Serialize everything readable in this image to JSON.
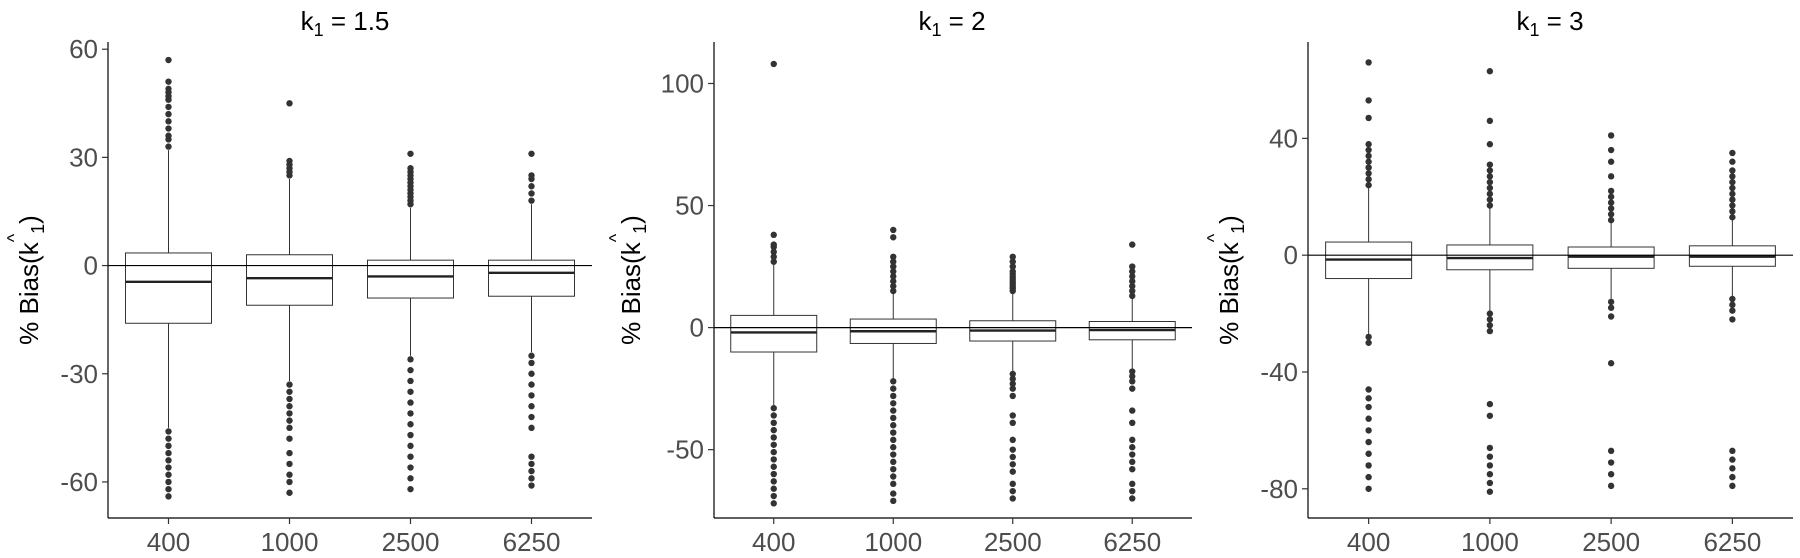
{
  "chart_data": [
    {
      "type": "boxplot",
      "title": {
        "var": "k",
        "sub": "1",
        "op": " = ",
        "value": "1.5"
      },
      "ylabel": {
        "prefix": "% Bias(",
        "var": "k",
        "sub": "1",
        "hat": "^",
        "suffix": ")"
      },
      "categories": [
        "400",
        "1000",
        "2500",
        "6250"
      ],
      "ylim": [
        -70,
        62
      ],
      "yticks": [
        60,
        30,
        0,
        -30,
        -60
      ],
      "ytick_labels": [
        "60",
        "30",
        "0",
        "-30",
        "-60"
      ],
      "hline": 0,
      "boxes": [
        {
          "q1": -16,
          "median": -4.5,
          "q3": 3.5,
          "whisker_low": -45,
          "whisker_high": 32,
          "outliers_high": [
            33,
            35,
            36,
            38,
            40,
            42,
            44,
            46,
            47,
            48,
            49,
            51,
            57
          ],
          "outliers_low": [
            -46,
            -48,
            -50,
            -52,
            -54,
            -56,
            -58,
            -60,
            -62,
            -64
          ]
        },
        {
          "q1": -11,
          "median": -3.5,
          "q3": 3,
          "whisker_low": -32,
          "whisker_high": 24,
          "outliers_high": [
            25,
            26,
            27,
            28,
            29,
            45
          ],
          "outliers_low": [
            -33,
            -35,
            -37,
            -39,
            -41,
            -43,
            -45,
            -48,
            -52,
            -55,
            -58,
            -60,
            -63
          ]
        },
        {
          "q1": -9,
          "median": -3,
          "q3": 1.5,
          "whisker_low": -25,
          "whisker_high": 16,
          "outliers_high": [
            17,
            18,
            19,
            20,
            21,
            22,
            23,
            24,
            25,
            26,
            27,
            31
          ],
          "outliers_low": [
            -26,
            -29,
            -32,
            -35,
            -38,
            -41,
            -44,
            -47,
            -50,
            -53,
            -56,
            -59,
            -62
          ]
        },
        {
          "q1": -8.5,
          "median": -2,
          "q3": 1.5,
          "whisker_low": -24,
          "whisker_high": 17,
          "outliers_high": [
            18,
            20,
            22,
            24,
            25,
            31
          ],
          "outliers_low": [
            -25,
            -27,
            -30,
            -33,
            -36,
            -39,
            -42,
            -45,
            -53,
            -55,
            -57,
            -59,
            -61
          ]
        }
      ]
    },
    {
      "type": "boxplot",
      "title": {
        "var": "k",
        "sub": "1",
        "op": " = ",
        "value": "2"
      },
      "ylabel": {
        "prefix": "% Bias(",
        "var": "k",
        "sub": "1",
        "hat": "^",
        "suffix": ")"
      },
      "categories": [
        "400",
        "1000",
        "2500",
        "6250"
      ],
      "ylim": [
        -78,
        117
      ],
      "yticks": [
        100,
        50,
        0,
        -50
      ],
      "ytick_labels": [
        "100",
        "50",
        "0",
        "-50"
      ],
      "hline": 0,
      "boxes": [
        {
          "q1": -10,
          "median": -2,
          "q3": 5,
          "whisker_low": -32,
          "whisker_high": 26,
          "outliers_high": [
            27,
            29,
            31,
            33,
            34,
            38,
            108
          ],
          "outliers_low": [
            -33,
            -36,
            -39,
            -42,
            -45,
            -48,
            -51,
            -54,
            -57,
            -60,
            -63,
            -66,
            -69,
            -72
          ]
        },
        {
          "q1": -6.5,
          "median": -1.5,
          "q3": 3.5,
          "whisker_low": -21,
          "whisker_high": 14,
          "outliers_high": [
            15,
            17,
            19,
            21,
            23,
            25,
            27,
            29,
            37,
            40
          ],
          "outliers_low": [
            -22,
            -25,
            -28,
            -31,
            -34,
            -37,
            -40,
            -43,
            -46,
            -49,
            -52,
            -55,
            -58,
            -61,
            -64,
            -68,
            -71
          ]
        },
        {
          "q1": -5.5,
          "median": -1.2,
          "q3": 2.8,
          "whisker_low": -18,
          "whisker_high": 14,
          "outliers_high": [
            15,
            16,
            17,
            18,
            19,
            20,
            21,
            22,
            23,
            25,
            27,
            29
          ],
          "outliers_low": [
            -19,
            -21,
            -23,
            -25,
            -28,
            -36,
            -39,
            -46,
            -50,
            -53,
            -56,
            -59,
            -64,
            -67,
            -70
          ]
        },
        {
          "q1": -5,
          "median": -1,
          "q3": 2.5,
          "whisker_low": -17,
          "whisker_high": 12,
          "outliers_high": [
            13,
            15,
            17,
            19,
            21,
            23,
            25,
            34
          ],
          "outliers_low": [
            -18,
            -20,
            -22,
            -25,
            -34,
            -39,
            -46,
            -49,
            -52,
            -55,
            -58,
            -64,
            -67,
            -70
          ]
        }
      ]
    },
    {
      "type": "boxplot",
      "title": {
        "var": "k",
        "sub": "1",
        "op": " = ",
        "value": "3"
      },
      "ylabel": {
        "prefix": "% Bias(",
        "var": "k",
        "sub": "1",
        "hat": "^",
        "suffix": ")"
      },
      "categories": [
        "400",
        "1000",
        "2500",
        "6250"
      ],
      "ylim": [
        -90,
        73
      ],
      "yticks": [
        40,
        0,
        -40,
        -80
      ],
      "ytick_labels": [
        "40",
        "0",
        "-40",
        "-80"
      ],
      "hline": 0,
      "boxes": [
        {
          "q1": -8,
          "median": -1.5,
          "q3": 4.5,
          "whisker_low": -27,
          "whisker_high": 23,
          "outliers_high": [
            24,
            26,
            28,
            30,
            32,
            34,
            36,
            38,
            47,
            53,
            66
          ],
          "outliers_low": [
            -28,
            -30,
            -46,
            -49,
            -52,
            -56,
            -60,
            -64,
            -68,
            -72,
            -76,
            -80
          ]
        },
        {
          "q1": -5,
          "median": -1,
          "q3": 3.5,
          "whisker_low": -19,
          "whisker_high": 16,
          "outliers_high": [
            17,
            19,
            21,
            23,
            25,
            27,
            29,
            31,
            38,
            46,
            63
          ],
          "outliers_low": [
            -20,
            -22,
            -24,
            -26,
            -51,
            -55,
            -66,
            -69,
            -72,
            -75,
            -78,
            -81
          ]
        },
        {
          "q1": -4.5,
          "median": -0.5,
          "q3": 2.8,
          "whisker_low": -15,
          "whisker_high": 11,
          "outliers_high": [
            12,
            14,
            16,
            18,
            20,
            22,
            27,
            32,
            36,
            41
          ],
          "outliers_low": [
            -16,
            -18,
            -21,
            -37,
            -67,
            -71,
            -75,
            -79
          ]
        },
        {
          "q1": -3.8,
          "median": -0.5,
          "q3": 3.2,
          "whisker_low": -14,
          "whisker_high": 12,
          "outliers_high": [
            13,
            15,
            17,
            19,
            21,
            23,
            25,
            27,
            29,
            32,
            35
          ],
          "outliers_low": [
            -15,
            -17,
            -19,
            -22,
            -67,
            -70,
            -73,
            -76,
            -79
          ]
        }
      ]
    }
  ]
}
